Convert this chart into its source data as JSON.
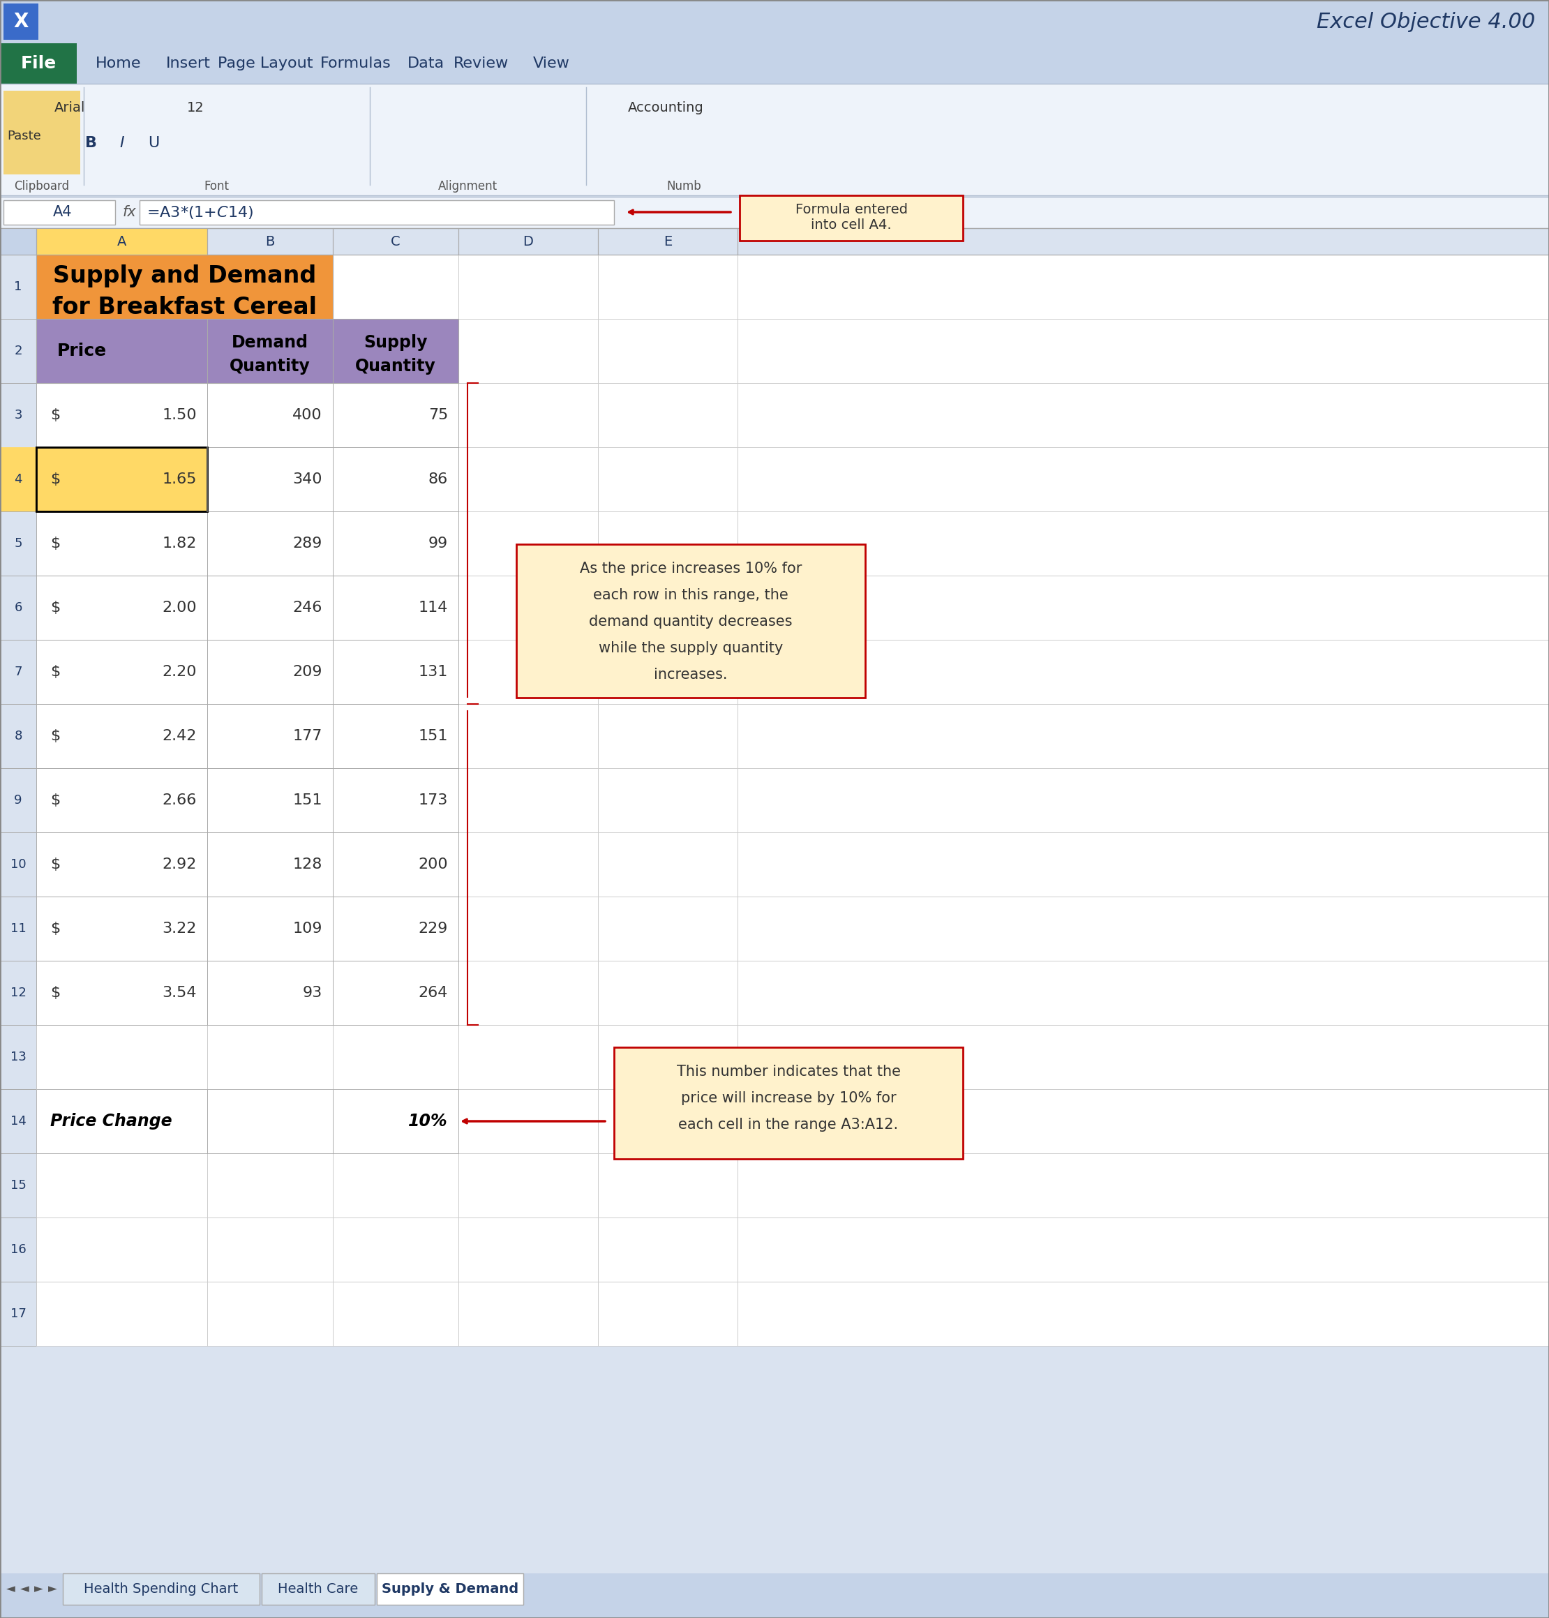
{
  "title": "Excel Objective 4.00",
  "spreadsheet_title_line1": "Supply and Demand",
  "spreadsheet_title_line2": "for Breakfast Cereal",
  "cell_ref": "A4",
  "formula": "=A3*(1+$C$14)",
  "headers": [
    "Price",
    "Demand\nQuantity",
    "Supply\nQuantity"
  ],
  "prices": [
    "$  1.50",
    "$  1.65",
    "$  1.82",
    "$  2.00",
    "$  2.20",
    "$  2.42",
    "$  2.66",
    "$  2.92",
    "$  3.22",
    "$  3.54"
  ],
  "demand": [
    400,
    340,
    289,
    246,
    209,
    177,
    151,
    128,
    109,
    93
  ],
  "supply": [
    75,
    86,
    99,
    114,
    131,
    151,
    173,
    200,
    229,
    264
  ],
  "price_change_label": "Price Change",
  "price_change_value": "10%",
  "row_numbers": [
    "1",
    "2",
    "3",
    "4",
    "5",
    "6",
    "7",
    "8",
    "9",
    "10",
    "11",
    "12",
    "13",
    "14",
    "15",
    "16",
    "17"
  ],
  "col_letters": [
    "A",
    "B",
    "C",
    "D",
    "E"
  ],
  "annotation1_title": "Formula entered\ninto cell A4.",
  "annotation2_text": "As the price increases 10% for\neach row in this range, the\ndemand quantity decreases\nwhile the supply quantity\nincreases.",
  "annotation3_text": "This number indicates that the\nprice will increase by 10% for\neach cell in the range A3:A12.",
  "tab_labels": [
    "Health Spending Chart",
    "Health Care",
    "Supply & Demand"
  ],
  "active_tab": "Supply & Demand",
  "bg_color_title_bar": "#C5D3E8",
  "bg_color_ribbon": "#DAE3F0",
  "cell_color_orange": "#F0953A",
  "cell_color_purple": "#9B86BD",
  "cell_color_selected": "#FFD966",
  "cell_color_white": "#FFFFFF",
  "cell_color_grid": "#D3D3D3",
  "annotation_bg": "#FFF2CC",
  "annotation_border": "#C00000",
  "formula_bar_color": "#FFFFFF",
  "tab_active_color": "#FFFFFF",
  "tab_inactive_color": "#C5D3E8"
}
